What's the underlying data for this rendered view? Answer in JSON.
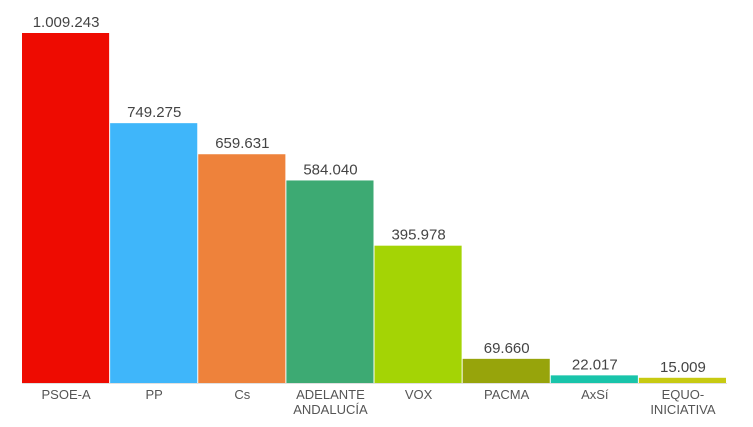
{
  "chart_data": {
    "type": "bar",
    "title": "",
    "xlabel": "",
    "ylabel": "",
    "grid": false,
    "ylim": [
      0,
      1009243
    ],
    "categories": [
      [
        "PSOE-A"
      ],
      [
        "PP"
      ],
      [
        "Cs"
      ],
      [
        "ADELANTE",
        "ANDALUCÍA"
      ],
      [
        "VOX"
      ],
      [
        "PACMA"
      ],
      [
        "AxSí"
      ],
      [
        "EQUO-",
        "INICIATIVA"
      ]
    ],
    "values": [
      1009243,
      749275,
      659631,
      584040,
      395978,
      69660,
      22017,
      15009
    ],
    "value_labels": [
      "1.009.243",
      "749.275",
      "659.631",
      "584.040",
      "395.978",
      "69.660",
      "22.017",
      "15.009"
    ],
    "colors": [
      "#ee0b01",
      "#3fb6fa",
      "#ee823b",
      "#3daa73",
      "#a4d405",
      "#97a40b",
      "#19c4aa",
      "#c7ca12"
    ]
  }
}
